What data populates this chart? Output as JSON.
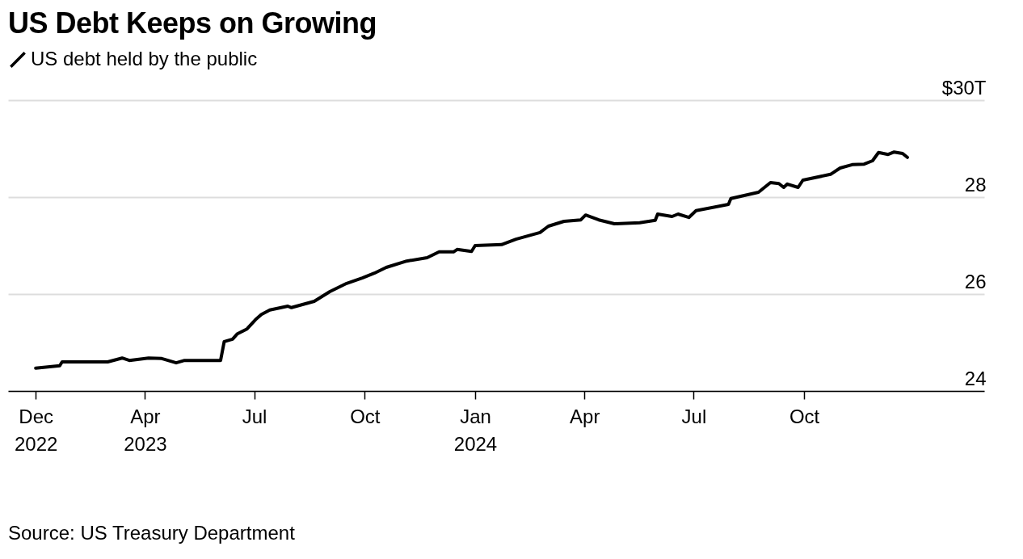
{
  "chart_data": {
    "type": "line",
    "title": "US Debt Keeps on Growing",
    "annotations": [
      "Source: US Treasury Department"
    ],
    "legend": "top left",
    "grid": "y",
    "marker": "none",
    "line_style": "solid",
    "xlim": [
      "2022-12-08",
      "2025-02-28"
    ],
    "xticks": [
      {
        "value": "2022-12-31",
        "label": "Dec 2022"
      },
      {
        "value": "2023-04-01",
        "label": "Apr 2023"
      },
      {
        "value": "2023-07-01",
        "label": "Jul"
      },
      {
        "value": "2023-10-01",
        "label": "Oct"
      },
      {
        "value": "2024-01-01",
        "label": "Jan 2024"
      },
      {
        "value": "2024-04-01",
        "label": "Apr"
      },
      {
        "value": "2024-07-01",
        "label": "Jul"
      },
      {
        "value": "2024-10-01",
        "label": "Oct"
      }
    ],
    "ylim": [
      24,
      30
    ],
    "yticks": [
      24,
      26,
      28,
      {
        "value": 30,
        "label": "$30T"
      }
    ],
    "x": [
      "2022-12-31",
      "2023-01-20",
      "2023-01-22",
      "2023-03-01",
      "2023-03-13",
      "2023-03-19",
      "2023-04-04",
      "2023-04-15",
      "2023-04-27",
      "2023-05-04",
      "2023-06-03",
      "2023-06-06",
      "2023-06-13",
      "2023-06-17",
      "2023-06-25",
      "2023-07-02",
      "2023-07-07",
      "2023-07-14",
      "2023-07-29",
      "2023-08-01",
      "2023-08-20",
      "2023-09-02",
      "2023-09-16",
      "2023-09-29",
      "2023-10-09",
      "2023-10-19",
      "2023-11-05",
      "2023-11-22",
      "2023-12-02",
      "2023-12-14",
      "2023-12-17",
      "2023-12-29",
      "2024-01-01",
      "2024-01-23",
      "2024-02-04",
      "2024-02-24",
      "2024-03-02",
      "2024-03-15",
      "2024-03-29",
      "2024-04-02",
      "2024-04-13",
      "2024-04-26",
      "2024-05-17",
      "2024-05-30",
      "2024-06-01",
      "2024-06-13",
      "2024-06-18",
      "2024-06-27",
      "2024-07-03",
      "2024-07-30",
      "2024-08-01",
      "2024-08-24",
      "2024-09-03",
      "2024-09-10",
      "2024-09-14",
      "2024-09-17",
      "2024-09-26",
      "2024-09-30",
      "2024-10-23",
      "2024-10-31",
      "2024-11-10",
      "2024-11-20",
      "2024-11-27",
      "2024-12-02",
      "2024-12-10",
      "2024-12-15",
      "2024-12-22",
      "2024-12-26"
    ],
    "series": [
      {
        "name": "US debt held by the public",
        "color": "#000000",
        "values": [
          24.47,
          24.52,
          24.6,
          24.6,
          24.68,
          24.63,
          24.68,
          24.67,
          24.58,
          24.63,
          24.63,
          25.02,
          25.07,
          25.18,
          25.28,
          25.47,
          25.58,
          25.67,
          25.75,
          25.72,
          25.85,
          26.05,
          26.22,
          26.33,
          26.43,
          26.55,
          26.68,
          26.75,
          26.87,
          26.87,
          26.92,
          26.88,
          27.0,
          27.02,
          27.13,
          27.27,
          27.4,
          27.5,
          27.53,
          27.63,
          27.53,
          27.45,
          27.47,
          27.52,
          27.65,
          27.6,
          27.65,
          27.58,
          27.72,
          27.85,
          27.97,
          28.1,
          28.3,
          28.28,
          28.2,
          28.27,
          28.2,
          28.35,
          28.47,
          28.6,
          28.67,
          28.68,
          28.75,
          28.92,
          28.88,
          28.93,
          28.9,
          28.82
        ]
      }
    ]
  }
}
